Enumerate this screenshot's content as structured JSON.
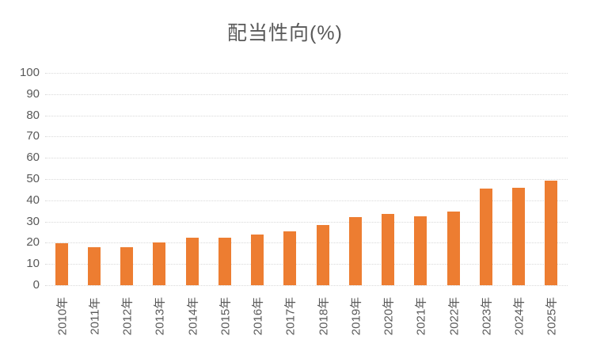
{
  "chart_data": {
    "type": "bar",
    "title": "配当性向(%)",
    "categories": [
      "2010年",
      "2011年",
      "2012年",
      "2013年",
      "2014年",
      "2015年",
      "2016年",
      "2017年",
      "2018年",
      "2019年",
      "2020年",
      "2021年",
      "2022年",
      "2023年",
      "2024年",
      "2025年"
    ],
    "values": [
      19.6,
      17.9,
      17.9,
      20.2,
      22.5,
      22.3,
      24.0,
      25.4,
      28.2,
      32.2,
      33.6,
      32.4,
      34.6,
      45.4,
      45.9,
      49.3
    ],
    "xlabel": "",
    "ylabel": "",
    "ylim": [
      0,
      100
    ],
    "ytick_interval": 10,
    "grid": "on",
    "legend": "none",
    "colors": {
      "bar": "#ED7D31",
      "gridline": "#D9D9D9",
      "text": "#595959",
      "background": "#FFFFFF"
    }
  }
}
